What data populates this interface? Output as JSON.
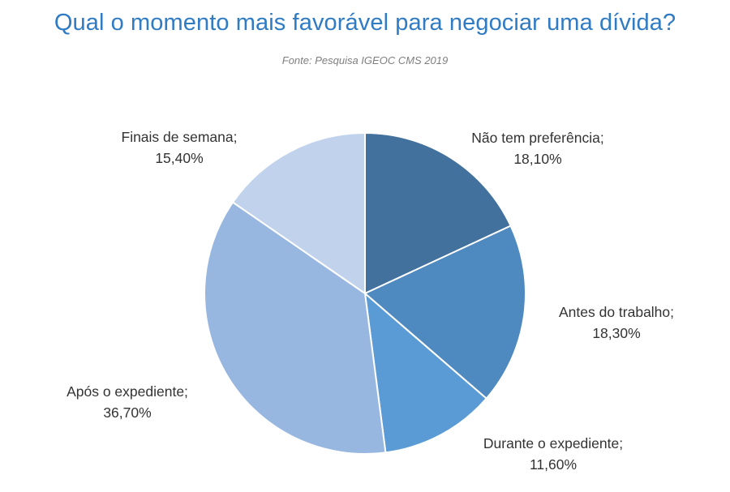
{
  "title": "Qual o momento mais favorável para negociar uma dívida?",
  "source": "Fonte: Pesquisa IGEOC CMS 2019",
  "chart_data": {
    "type": "pie",
    "title": "Qual o momento mais favorável para negociar uma dívida?",
    "start_angle_deg": 0,
    "direction": "clockwise",
    "slices": [
      {
        "label": "Não tem preferência;",
        "value": 18.1,
        "value_label": "18,10%",
        "color": "#41719c"
      },
      {
        "label": "Antes do trabalho;",
        "value": 18.3,
        "value_label": "18,30%",
        "color": "#4e89bf"
      },
      {
        "label": "Durante o expediente;",
        "value": 11.6,
        "value_label": "11,60%",
        "color": "#5b9bd5"
      },
      {
        "label": "Após o expediente;",
        "value": 36.7,
        "value_label": "36,70%",
        "color": "#98b7e0"
      },
      {
        "label": "Finais de semana;",
        "value": 15.4,
        "value_label": "15,40%",
        "color": "#c1d3ec"
      }
    ]
  }
}
